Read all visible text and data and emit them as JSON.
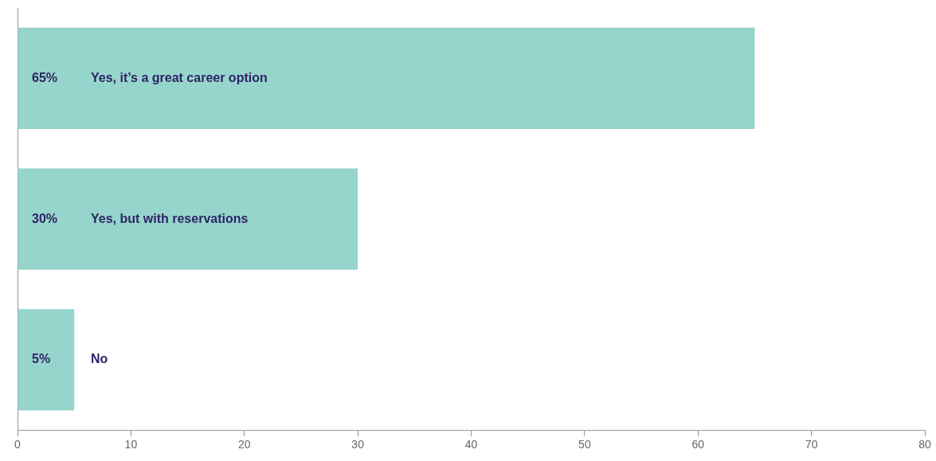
{
  "chart_data": {
    "type": "bar",
    "orientation": "horizontal",
    "categories": [
      "Yes, it’s a great career option",
      "Yes, but with reservations",
      "No"
    ],
    "values": [
      65,
      30,
      5
    ],
    "color": "#96d5cb",
    "value_labels": [
      "65%",
      "30%",
      "5%"
    ],
    "xlim": [
      0,
      80
    ],
    "xticks": [
      0,
      10,
      20,
      30,
      40,
      50,
      60,
      70,
      80
    ],
    "grid": false,
    "legend": false
  }
}
